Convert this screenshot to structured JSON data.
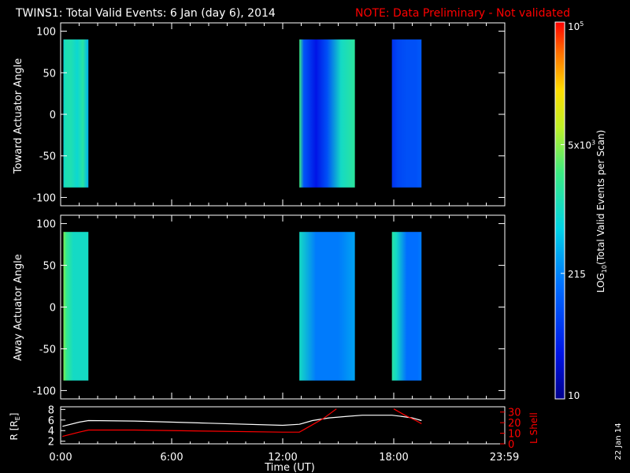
{
  "title": {
    "main": "TWINS1: Total Valid Events:  6 Jan (day   6), 2014",
    "note": "NOTE: Data Preliminary - Not validated",
    "note_color": "#ff0000"
  },
  "date_stamp": "22 Jan 14",
  "chart_data": [
    {
      "type": "heatmap",
      "panel": "toward",
      "ylabel": "Toward Actuator Angle",
      "xlim_hours": [
        0,
        24
      ],
      "ylim": [
        -110,
        110
      ],
      "yticks": [
        100,
        50,
        0,
        -50,
        -100
      ],
      "data_extent_angle": [
        -88,
        90
      ],
      "intervals_hours": [
        [
          0.15,
          1.5
        ],
        [
          12.9,
          15.9
        ],
        [
          17.9,
          19.5
        ]
      ],
      "colorbar_channel": {
        "0": [
          [
            0.0,
            0.44
          ],
          [
            0.05,
            0.52
          ],
          [
            0.3,
            0.53
          ],
          [
            0.55,
            0.48
          ],
          [
            0.78,
            0.55
          ],
          [
            1.0,
            0.4
          ]
        ],
        "1": [
          [
            0.0,
            0.6
          ],
          [
            0.08,
            0.25
          ],
          [
            0.2,
            0.18
          ],
          [
            0.3,
            0.12
          ],
          [
            0.5,
            0.24
          ],
          [
            0.75,
            0.5
          ],
          [
            1.0,
            0.56
          ]
        ],
        "2": [
          [
            0.0,
            0.18
          ],
          [
            0.2,
            0.22
          ],
          [
            0.5,
            0.24
          ],
          [
            0.8,
            0.24
          ],
          [
            1.0,
            0.26
          ]
        ]
      }
    },
    {
      "type": "heatmap",
      "panel": "away",
      "ylabel": "Away Actuator Angle",
      "xlim_hours": [
        0,
        24
      ],
      "ylim": [
        -110,
        110
      ],
      "yticks": [
        100,
        50,
        0,
        -50,
        -100
      ],
      "data_extent_angle": [
        -88,
        90
      ],
      "intervals_hours": [
        [
          0.15,
          1.5
        ],
        [
          12.9,
          15.9
        ],
        [
          17.9,
          19.5
        ]
      ],
      "colorbar_channel": {
        "0": [
          [
            0.0,
            0.66
          ],
          [
            0.12,
            0.58
          ],
          [
            0.4,
            0.5
          ],
          [
            0.75,
            0.5
          ],
          [
            1.0,
            0.5
          ]
        ],
        "1": [
          [
            0.0,
            0.5
          ],
          [
            0.3,
            0.32
          ],
          [
            0.7,
            0.32
          ],
          [
            1.0,
            0.38
          ]
        ],
        "2": [
          [
            0.0,
            0.55
          ],
          [
            0.15,
            0.5
          ],
          [
            0.5,
            0.3
          ],
          [
            0.85,
            0.3
          ],
          [
            1.0,
            0.32
          ]
        ]
      }
    },
    {
      "type": "line",
      "panel": "orbit",
      "ylabel": "R [RE]",
      "ylabel_main": "R [R",
      "ylabel_sub": "E",
      "ylabel_close": "]",
      "y2label": "L Shell",
      "xlabel": "Time (UT)",
      "xticks": [
        "0:00",
        "6:00",
        "12:00",
        "18:00",
        "23:59"
      ],
      "xtick_hours": [
        0,
        6,
        12,
        18,
        23.98
      ],
      "ylim": [
        1.5,
        8.5
      ],
      "yticks": [
        2,
        4,
        6,
        8
      ],
      "y2lim": [
        0,
        35
      ],
      "y2ticks": [
        0,
        10,
        20,
        30
      ],
      "series": [
        {
          "name": "R [RE]",
          "axis": "left",
          "color": "#ffffff",
          "x": [
            0.1,
            1.0,
            1.5,
            4,
            8,
            12,
            12.9,
            13.6,
            14.5,
            15.5,
            16.3,
            17.0,
            17.9,
            18.4,
            19.0,
            19.5
          ],
          "y": [
            4.8,
            5.6,
            5.9,
            5.8,
            5.4,
            5.0,
            5.2,
            5.9,
            6.4,
            6.7,
            6.9,
            6.9,
            6.9,
            6.7,
            6.4,
            5.9
          ]
        },
        {
          "name": "L Shell",
          "axis": "right",
          "color": "#ff0000",
          "segments": [
            {
              "x": [
                0.1,
                1.0,
                1.5,
                4,
                8,
                12,
                12.9,
                13.5,
                14.2,
                14.9
              ],
              "y": [
                7,
                11,
                13,
                13,
                12,
                11,
                11,
                17,
                24,
                33
              ]
            },
            {
              "x": [
                18.0,
                18.6,
                19.2,
                19.5
              ],
              "y": [
                33,
                27,
                22,
                19
              ]
            }
          ]
        }
      ]
    },
    {
      "type": "colorbar",
      "label_main": "LOG",
      "label_sub": "10",
      "label_rest": "(Total Valid Events per Scan)",
      "ticks": [
        {
          "value": 100000,
          "main": "10",
          "sup": "5"
        },
        {
          "value": 5000,
          "main": "5x10",
          "sup": "3"
        },
        {
          "value": 215,
          "main": "215",
          "sup": ""
        },
        {
          "value": 10,
          "main": "10",
          "sup": ""
        }
      ],
      "range_log": [
        1,
        5
      ]
    }
  ]
}
